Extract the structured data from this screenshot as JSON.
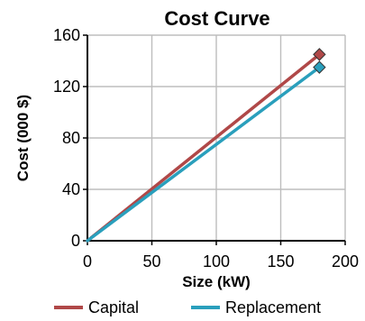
{
  "chart_data": {
    "type": "line",
    "title": "Cost Curve",
    "xlabel": "Size (kW)",
    "ylabel": "Cost (000 $)",
    "xlim": [
      0,
      200
    ],
    "ylim": [
      0,
      160
    ],
    "xticks": [
      "0",
      "50",
      "100",
      "150",
      "200"
    ],
    "yticks": [
      "0",
      "40",
      "80",
      "120",
      "160"
    ],
    "grid": true,
    "legend_position": "bottom",
    "series": [
      {
        "name": "Capital",
        "color": "#b04848",
        "x": [
          0,
          180
        ],
        "y": [
          0,
          145
        ],
        "marker": "diamond"
      },
      {
        "name": "Replacement",
        "color": "#2a9fbc",
        "x": [
          0,
          180
        ],
        "y": [
          0,
          135
        ],
        "marker": "diamond"
      }
    ]
  }
}
